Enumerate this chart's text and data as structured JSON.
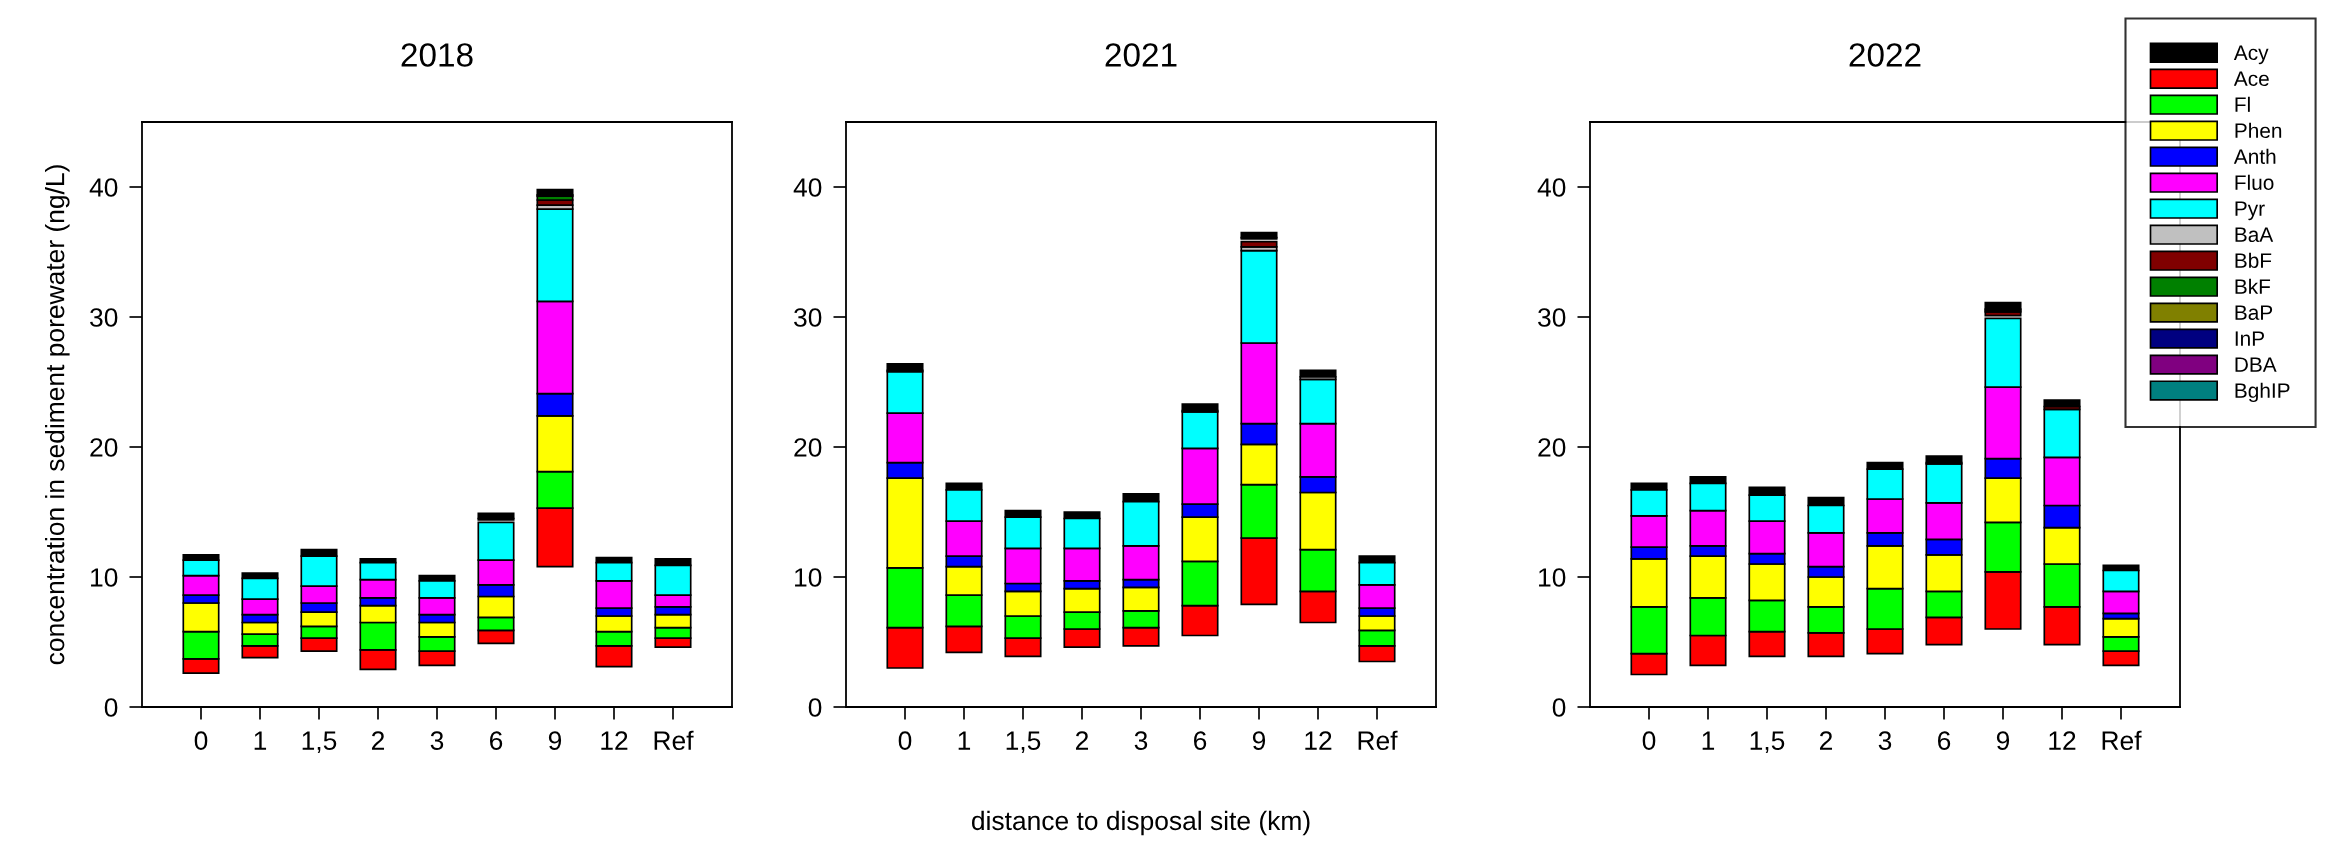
{
  "chart_data": [
    {
      "type": "bar",
      "title": "2018",
      "ylabel": "concentration in sediment porewater (ng/L)",
      "categories": [
        "0",
        "1",
        "1,5",
        "2",
        "3",
        "6",
        "9",
        "12",
        "Ref"
      ],
      "ylim": [
        0,
        45
      ],
      "yticks": [
        0,
        10,
        20,
        30,
        40
      ],
      "series": [
        {
          "color": "#000000",
          "base": [
            11.3,
            9.9,
            11.6,
            11.1,
            9.7,
            14.5,
            39.4,
            11.1,
            10.9
          ],
          "values": [
            0.4,
            0.4,
            0.5,
            0.3,
            0.4,
            0.4,
            0.4,
            0.4,
            0.5
          ]
        },
        {
          "color": "#ff0000",
          "base": [
            2.6,
            3.8,
            4.3,
            2.9,
            3.2,
            4.9,
            10.8,
            3.1,
            4.6
          ],
          "values": [
            1.1,
            0.9,
            1.0,
            1.5,
            1.1,
            1.0,
            4.5,
            1.6,
            0.7
          ]
        },
        {
          "color": "#00ff00",
          "base": [
            3.7,
            4.7,
            5.3,
            4.4,
            4.3,
            5.9,
            15.3,
            4.7,
            5.3
          ],
          "values": [
            2.1,
            0.9,
            0.9,
            2.1,
            1.1,
            1.0,
            2.8,
            1.1,
            0.8
          ]
        },
        {
          "color": "#ffff00",
          "base": [
            5.8,
            5.6,
            6.2,
            6.5,
            5.4,
            6.9,
            18.1,
            5.8,
            6.1
          ],
          "values": [
            2.2,
            0.9,
            1.1,
            1.3,
            1.1,
            1.6,
            4.3,
            1.2,
            1.0
          ]
        },
        {
          "color": "#0000ff",
          "base": [
            8.0,
            6.5,
            7.3,
            7.8,
            6.5,
            8.5,
            22.4,
            7.0,
            7.1
          ],
          "values": [
            0.6,
            0.6,
            0.7,
            0.6,
            0.6,
            0.9,
            1.7,
            0.6,
            0.6
          ]
        },
        {
          "color": "#ff00ff",
          "base": [
            8.6,
            7.1,
            8.0,
            8.4,
            7.1,
            9.4,
            24.1,
            7.6,
            7.7
          ],
          "values": [
            1.5,
            1.2,
            1.3,
            1.4,
            1.3,
            1.9,
            7.1,
            2.1,
            0.9
          ]
        },
        {
          "color": "#00ffff",
          "base": [
            10.1,
            8.3,
            9.3,
            9.8,
            8.4,
            11.3,
            31.2,
            9.7,
            8.6
          ],
          "values": [
            1.2,
            1.6,
            2.3,
            1.3,
            1.3,
            2.9,
            7.1,
            1.4,
            2.3
          ]
        },
        {
          "color": "#c0c0c0",
          "base": [
            null,
            null,
            null,
            null,
            null,
            null,
            38.3,
            null,
            null
          ],
          "values": [
            null,
            null,
            null,
            null,
            null,
            null,
            0.3,
            null,
            null
          ]
        },
        {
          "color": "#800000",
          "base": [
            null,
            null,
            null,
            null,
            null,
            null,
            38.6,
            null,
            null
          ],
          "values": [
            null,
            null,
            null,
            null,
            null,
            null,
            0.4,
            null,
            null
          ]
        },
        {
          "color": "#008000",
          "base": [
            null,
            null,
            null,
            null,
            null,
            14.4,
            39.0,
            null,
            null
          ],
          "values": [
            null,
            null,
            null,
            null,
            null,
            0.1,
            0.3,
            null,
            null
          ]
        },
        {
          "color": "#808000",
          "base": [
            null,
            null,
            null,
            null,
            null,
            null,
            39.3,
            null,
            null
          ],
          "values": [
            null,
            null,
            null,
            null,
            null,
            null,
            0.1,
            null,
            null
          ]
        }
      ]
    },
    {
      "type": "bar",
      "title": "2021",
      "xlabel": "distance to disposal site (km)",
      "categories": [
        "0",
        "1",
        "1,5",
        "2",
        "3",
        "6",
        "9",
        "12",
        "Ref"
      ],
      "ylim": [
        0,
        45
      ],
      "yticks": [
        0,
        10,
        20,
        30,
        40
      ],
      "series": [
        {
          "color": "#000000",
          "base": [
            25.9,
            16.7,
            14.6,
            14.5,
            15.8,
            22.8,
            36.1,
            25.4,
            11.1
          ],
          "values": [
            0.5,
            0.5,
            0.5,
            0.5,
            0.6,
            0.5,
            0.4,
            0.5,
            0.5
          ]
        },
        {
          "color": "#ff0000",
          "base": [
            3.0,
            4.2,
            3.9,
            4.6,
            4.7,
            5.5,
            7.9,
            6.5,
            3.5
          ],
          "values": [
            3.1,
            2.0,
            1.4,
            1.4,
            1.4,
            2.3,
            5.1,
            2.4,
            1.2
          ]
        },
        {
          "color": "#00ff00",
          "base": [
            6.1,
            6.2,
            5.3,
            6.0,
            6.1,
            7.8,
            13.0,
            8.9,
            4.7
          ],
          "values": [
            4.6,
            2.4,
            1.7,
            1.3,
            1.3,
            3.4,
            4.1,
            3.2,
            1.2
          ]
        },
        {
          "color": "#ffff00",
          "base": [
            10.7,
            8.6,
            7.0,
            7.3,
            7.4,
            11.2,
            17.1,
            12.1,
            5.9
          ],
          "values": [
            6.9,
            2.2,
            1.9,
            1.8,
            1.8,
            3.4,
            3.1,
            4.4,
            1.1
          ]
        },
        {
          "color": "#0000ff",
          "base": [
            17.6,
            10.8,
            8.9,
            9.1,
            9.2,
            14.6,
            20.2,
            16.5,
            7.0
          ],
          "values": [
            1.2,
            0.8,
            0.6,
            0.6,
            0.6,
            1.0,
            1.6,
            1.2,
            0.6
          ]
        },
        {
          "color": "#ff00ff",
          "base": [
            18.8,
            11.6,
            9.5,
            9.7,
            9.8,
            15.6,
            21.8,
            17.7,
            7.6
          ],
          "values": [
            3.8,
            2.7,
            2.7,
            2.5,
            2.6,
            4.3,
            6.2,
            4.1,
            1.8
          ]
        },
        {
          "color": "#00ffff",
          "base": [
            22.6,
            14.3,
            12.2,
            12.2,
            12.4,
            19.9,
            28.0,
            21.8,
            9.4
          ],
          "values": [
            3.2,
            2.4,
            2.4,
            2.3,
            3.4,
            2.8,
            7.1,
            3.4,
            1.7
          ]
        },
        {
          "color": "#c0c0c0",
          "base": [
            25.8,
            null,
            null,
            null,
            null,
            22.7,
            35.1,
            25.2,
            null
          ],
          "values": [
            0.1,
            null,
            null,
            null,
            null,
            0.1,
            0.3,
            0.2,
            null
          ]
        },
        {
          "color": "#800000",
          "base": [
            null,
            null,
            null,
            null,
            null,
            null,
            35.4,
            null,
            null
          ],
          "values": [
            null,
            null,
            null,
            null,
            null,
            null,
            0.4,
            null,
            null
          ]
        },
        {
          "color": "#008000",
          "base": [
            null,
            null,
            null,
            null,
            null,
            null,
            null,
            null,
            null
          ],
          "values": [
            null,
            null,
            null,
            null,
            null,
            null,
            null,
            null,
            null
          ]
        },
        {
          "color": "#808000",
          "base": [
            null,
            null,
            null,
            null,
            null,
            null,
            36.0,
            null,
            null
          ],
          "values": [
            null,
            null,
            null,
            null,
            null,
            null,
            0.1,
            null,
            null
          ]
        }
      ]
    },
    {
      "type": "bar",
      "title": "2022",
      "legend": "top right",
      "categories": [
        "0",
        "1",
        "1,5",
        "2",
        "3",
        "6",
        "9",
        "12",
        "Ref"
      ],
      "ylim": [
        0,
        45
      ],
      "yticks": [
        0,
        10,
        20,
        30,
        40
      ],
      "series": [
        {
          "name": "Acy",
          "color": "#000000",
          "base": [
            16.7,
            17.2,
            16.3,
            15.5,
            18.3,
            18.8,
            30.6,
            23.1,
            10.5
          ],
          "values": [
            0.5,
            0.5,
            0.6,
            0.6,
            0.5,
            0.5,
            0.5,
            0.5,
            0.4
          ]
        },
        {
          "name": "Ace",
          "color": "#ff0000",
          "base": [
            2.5,
            3.2,
            3.9,
            3.9,
            4.1,
            4.8,
            6.0,
            4.8,
            3.2
          ],
          "values": [
            1.6,
            2.3,
            1.9,
            1.8,
            1.9,
            2.1,
            4.4,
            2.9,
            1.1
          ]
        },
        {
          "name": "Fl",
          "color": "#00ff00",
          "base": [
            4.1,
            5.5,
            5.8,
            5.7,
            6.0,
            6.9,
            10.4,
            7.7,
            4.3
          ],
          "values": [
            3.6,
            2.9,
            2.4,
            2.0,
            3.1,
            2.0,
            3.8,
            3.3,
            1.1
          ]
        },
        {
          "name": "Phen",
          "color": "#ffff00",
          "base": [
            7.7,
            8.4,
            8.2,
            7.7,
            9.1,
            8.9,
            14.2,
            11.0,
            5.4
          ],
          "values": [
            3.7,
            3.2,
            2.8,
            2.3,
            3.3,
            2.8,
            3.4,
            2.8,
            1.4
          ]
        },
        {
          "name": "Anth",
          "color": "#0000ff",
          "base": [
            11.4,
            11.6,
            11.0,
            10.0,
            12.4,
            11.7,
            17.6,
            13.8,
            6.8
          ],
          "values": [
            0.9,
            0.8,
            0.8,
            0.8,
            1.0,
            1.2,
            1.5,
            1.7,
            0.4
          ]
        },
        {
          "name": "Fluo",
          "color": "#ff00ff",
          "base": [
            12.3,
            12.4,
            11.8,
            10.8,
            13.4,
            12.9,
            19.1,
            15.5,
            7.2
          ],
          "values": [
            2.4,
            2.7,
            2.5,
            2.6,
            2.6,
            2.8,
            5.5,
            3.7,
            1.7
          ]
        },
        {
          "name": "Pyr",
          "color": "#00ffff",
          "base": [
            14.7,
            15.1,
            14.3,
            13.4,
            16.0,
            15.7,
            24.6,
            19.2,
            8.9
          ],
          "values": [
            2.0,
            2.1,
            2.0,
            2.1,
            2.3,
            3.0,
            5.3,
            3.7,
            1.6
          ]
        },
        {
          "name": "BaA",
          "color": "#c0c0c0",
          "values": [
            null,
            null,
            null,
            null,
            null,
            null,
            null,
            null,
            null
          ]
        },
        {
          "name": "BbF",
          "color": "#800000",
          "base": [
            null,
            null,
            null,
            null,
            null,
            18.7,
            30.1,
            22.9,
            null
          ],
          "values": [
            null,
            null,
            null,
            null,
            null,
            0.1,
            0.3,
            0.2,
            null
          ]
        },
        {
          "name": "BkF",
          "color": "#008000",
          "base": [
            null,
            null,
            null,
            null,
            null,
            null,
            30.4,
            null,
            null
          ],
          "values": [
            null,
            null,
            null,
            null,
            null,
            null,
            0.1,
            null,
            null
          ]
        },
        {
          "name": "BaP",
          "color": "#808000",
          "base": [
            null,
            null,
            null,
            null,
            null,
            null,
            30.5,
            null,
            null
          ],
          "values": [
            null,
            null,
            null,
            null,
            null,
            null,
            0.1,
            null,
            null
          ]
        },
        {
          "name": "InP",
          "color": "#000080",
          "values": [
            null,
            null,
            null,
            null,
            null,
            null,
            null,
            null,
            null
          ]
        },
        {
          "name": "DBA",
          "color": "#800080",
          "values": [
            null,
            null,
            null,
            null,
            null,
            null,
            null,
            null,
            null
          ]
        },
        {
          "name": "BghIP",
          "color": "#008080",
          "values": [
            null,
            null,
            null,
            null,
            null,
            null,
            null,
            null,
            null
          ]
        }
      ]
    }
  ]
}
